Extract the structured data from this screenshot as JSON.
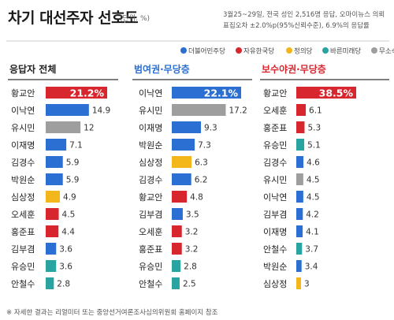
{
  "title": "차기 대선주자 선호도",
  "unit": "(단위: %)",
  "note": "3월25~29일, 전국 성인 2,516명 응답, 오마이뉴스 의뢰 표집오차 ±2.0%p(95%신뢰수준), 6.9%의 응답률",
  "source": "※ 자세한 결과는 리얼미터 또는 중앙선거여론조사심의위원회 홈페이지 참조",
  "legend": [
    {
      "name": "더불어민주당",
      "color": "#2a6fd1"
    },
    {
      "name": "자유한국당",
      "color": "#d7262e"
    },
    {
      "name": "정의당",
      "color": "#f3b71c"
    },
    {
      "name": "바른미래당",
      "color": "#2aa4a0"
    },
    {
      "name": "무소속",
      "color": "#9e9e9e"
    }
  ],
  "chart_data": [
    {
      "type": "bar",
      "title": "응답자 전체",
      "title_color": "#222222",
      "categories": [
        "황교안",
        "이낙연",
        "유시민",
        "이재명",
        "김경수",
        "박원순",
        "심상정",
        "오세훈",
        "홍준표",
        "김부겸",
        "유승민",
        "안철수"
      ],
      "values": [
        21.2,
        14.9,
        12,
        7.1,
        5.9,
        5.9,
        4.9,
        4.5,
        4.4,
        3.6,
        3.6,
        2.8
      ],
      "value_labels": [
        "21.2%",
        "14.9",
        "12",
        "7.1",
        "5.9",
        "5.9",
        "4.9",
        "4.5",
        "4.4",
        "3.6",
        "3.6",
        "2.8"
      ],
      "parties": [
        "자유한국당",
        "더불어민주당",
        "무소속",
        "더불어민주당",
        "더불어민주당",
        "더불어민주당",
        "정의당",
        "자유한국당",
        "자유한국당",
        "더불어민주당",
        "바른미래당",
        "바른미래당"
      ]
    },
    {
      "type": "bar",
      "title": "범여권·무당층",
      "title_color": "#2a6fd1",
      "categories": [
        "이낙연",
        "유시민",
        "이재명",
        "박원순",
        "심상정",
        "김경수",
        "황교안",
        "김부겸",
        "오세훈",
        "홍준표",
        "유승민",
        "안철수"
      ],
      "values": [
        22.1,
        17.2,
        9.3,
        7.3,
        6.3,
        6.2,
        4.8,
        3.5,
        3.2,
        3.2,
        2.8,
        2.5
      ],
      "value_labels": [
        "22.1%",
        "17.2",
        "9.3",
        "7.3",
        "6.3",
        "6.2",
        "4.8",
        "3.5",
        "3.2",
        "3.2",
        "2.8",
        "2.5"
      ],
      "parties": [
        "더불어민주당",
        "무소속",
        "더불어민주당",
        "더불어민주당",
        "정의당",
        "더불어민주당",
        "자유한국당",
        "더불어민주당",
        "자유한국당",
        "자유한국당",
        "바른미래당",
        "바른미래당"
      ]
    },
    {
      "type": "bar",
      "title": "보수야권·무당층",
      "title_color": "#d7262e",
      "categories": [
        "황교안",
        "오세훈",
        "홍준표",
        "유승민",
        "김경수",
        "유시민",
        "이낙연",
        "김부겸",
        "이재명",
        "안철수",
        "박원순",
        "심상정"
      ],
      "values": [
        38.5,
        6.1,
        5.3,
        5.1,
        4.6,
        4.5,
        4.5,
        4.2,
        4.1,
        3.7,
        3.4,
        3
      ],
      "value_labels": [
        "38.5%",
        "6.1",
        "5.3",
        "5.1",
        "4.6",
        "4.5",
        "4.5",
        "4.2",
        "4.1",
        "3.7",
        "3.4",
        "3"
      ],
      "parties": [
        "자유한국당",
        "자유한국당",
        "자유한국당",
        "바른미래당",
        "더불어민주당",
        "무소속",
        "더불어민주당",
        "더불어민주당",
        "더불어민주당",
        "바른미래당",
        "더불어민주당",
        "정의당"
      ]
    }
  ]
}
